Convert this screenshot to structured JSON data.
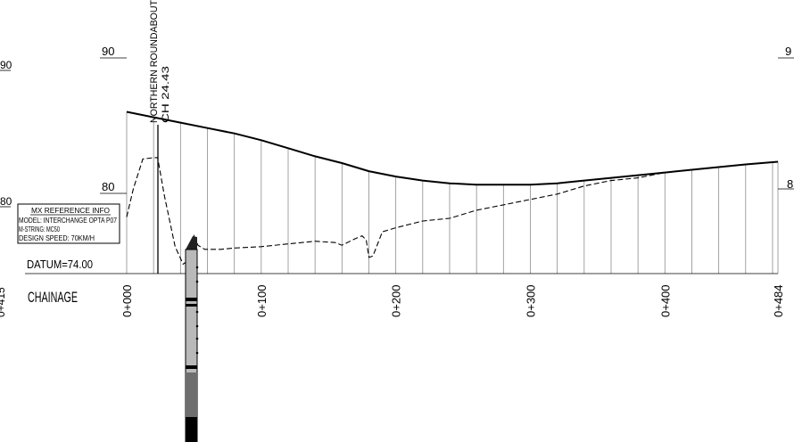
{
  "drawing": {
    "level_labels": [
      {
        "id": "left-90",
        "text": "90"
      },
      {
        "id": "left-80",
        "text": "80"
      },
      {
        "id": "axis-90",
        "text": "90"
      },
      {
        "id": "axis-80",
        "text": "80"
      },
      {
        "id": "right-90",
        "text": "9"
      },
      {
        "id": "right-80",
        "text": "8"
      }
    ],
    "left_edge_label": "0+415",
    "datum_label": "DATUM=74.00",
    "chainage_label": "CHAINAGE",
    "chainage_ticks": [
      "0+000",
      "0+100",
      "0+200",
      "0+300",
      "0+400",
      "0+484"
    ],
    "roundabout_label": "NORTHERN  ROUNDABOUT",
    "roundabout_ch": "CH 24.43",
    "info_box": {
      "title": "MX  REFERENCE  INFO",
      "model": "MODEL:  INTERCHANGE  OPTA  P07",
      "string": "M-STRING:  MC50",
      "speed": "DESIGN  SPEED:  70KM/H"
    }
  },
  "chart_data": {
    "type": "line",
    "xlabel": "CHAINAGE",
    "datum": 74.0,
    "xlim": [
      0,
      484
    ],
    "ylim": [
      74,
      90
    ],
    "series": [
      {
        "style": "solid",
        "x": [
          0,
          20,
          40,
          60,
          80,
          100,
          120,
          140,
          160,
          180,
          200,
          220,
          240,
          260,
          280,
          300,
          320,
          340,
          360,
          380,
          400,
          420,
          440,
          460,
          484
        ],
        "y": [
          86.0,
          85.6,
          85.2,
          84.8,
          84.4,
          83.9,
          83.3,
          82.7,
          82.2,
          81.6,
          81.2,
          80.9,
          80.7,
          80.6,
          80.6,
          80.6,
          80.7,
          80.9,
          81.1,
          81.3,
          81.5,
          81.7,
          81.9,
          82.1,
          82.3
        ]
      },
      {
        "style": "dashed",
        "x": [
          0,
          5,
          12,
          20,
          23,
          28,
          36,
          42,
          46,
          50,
          53,
          58,
          70,
          80,
          100,
          120,
          140,
          155,
          160,
          170,
          175,
          178,
          180,
          183,
          190,
          200,
          220,
          240,
          260,
          280,
          300,
          320,
          340,
          360,
          380,
          400,
          420,
          440,
          460,
          484
        ],
        "y": [
          78.2,
          80.3,
          82.5,
          82.6,
          82.6,
          79.8,
          76.0,
          74.7,
          75.0,
          76.8,
          76.1,
          75.8,
          75.8,
          75.9,
          76.0,
          76.2,
          76.4,
          76.3,
          76.1,
          76.6,
          76.8,
          76.5,
          75.2,
          75.3,
          77.1,
          77.4,
          77.9,
          78.1,
          78.7,
          79.1,
          79.5,
          79.9,
          80.5,
          80.9,
          81.1,
          81.5,
          81.7,
          81.9,
          82.1,
          82.3
        ]
      }
    ]
  }
}
